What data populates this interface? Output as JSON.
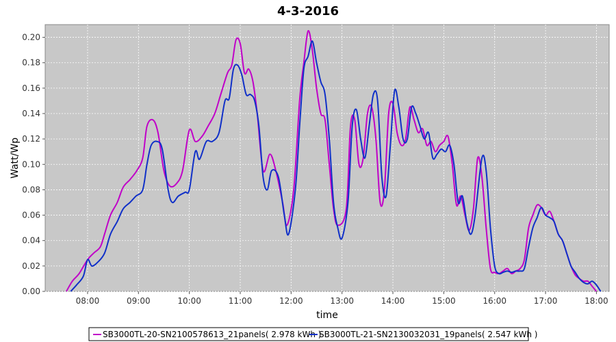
{
  "chart_data": {
    "type": "line",
    "title": "4-3-2016",
    "xlabel": "time",
    "ylabel": "Watt/Wp",
    "xlim": [
      "07:10",
      "18:15"
    ],
    "ylim": [
      0,
      0.21
    ],
    "xticks": [
      "08:00",
      "09:00",
      "10:00",
      "11:00",
      "12:00",
      "13:00",
      "14:00",
      "15:00",
      "16:00",
      "17:00",
      "18:00"
    ],
    "yticks": [
      "0.00",
      "0.02",
      "0.04",
      "0.06",
      "0.08",
      "0.10",
      "0.12",
      "0.14",
      "0.16",
      "0.18",
      "0.20"
    ],
    "grid": true,
    "legend_position": "bottom",
    "plot_background": "#c8c8c8",
    "series": [
      {
        "name": "SB3000TL-20-SN2100578613_21panels( 2.978 kWh )",
        "color": "#c000c8",
        "points": [
          [
            "07:35",
            0.0
          ],
          [
            "07:42",
            0.008
          ],
          [
            "07:50",
            0.014
          ],
          [
            "08:00",
            0.025
          ],
          [
            "08:07",
            0.03
          ],
          [
            "08:15",
            0.035
          ],
          [
            "08:20",
            0.045
          ],
          [
            "08:27",
            0.06
          ],
          [
            "08:35",
            0.07
          ],
          [
            "08:42",
            0.082
          ],
          [
            "08:50",
            0.088
          ],
          [
            "08:58",
            0.095
          ],
          [
            "09:05",
            0.105
          ],
          [
            "09:10",
            0.13
          ],
          [
            "09:17",
            0.135
          ],
          [
            "09:23",
            0.125
          ],
          [
            "09:30",
            0.095
          ],
          [
            "09:37",
            0.083
          ],
          [
            "09:45",
            0.085
          ],
          [
            "09:52",
            0.095
          ],
          [
            "10:00",
            0.127
          ],
          [
            "10:07",
            0.118
          ],
          [
            "10:15",
            0.122
          ],
          [
            "10:22",
            0.13
          ],
          [
            "10:30",
            0.14
          ],
          [
            "10:37",
            0.155
          ],
          [
            "10:45",
            0.172
          ],
          [
            "10:50",
            0.178
          ],
          [
            "10:55",
            0.198
          ],
          [
            "11:00",
            0.195
          ],
          [
            "11:05",
            0.172
          ],
          [
            "11:10",
            0.175
          ],
          [
            "11:15",
            0.165
          ],
          [
            "11:20",
            0.14
          ],
          [
            "11:27",
            0.095
          ],
          [
            "11:35",
            0.108
          ],
          [
            "11:42",
            0.095
          ],
          [
            "11:50",
            0.07
          ],
          [
            "11:55",
            0.052
          ],
          [
            "12:03",
            0.08
          ],
          [
            "12:10",
            0.15
          ],
          [
            "12:15",
            0.18
          ],
          [
            "12:20",
            0.205
          ],
          [
            "12:25",
            0.19
          ],
          [
            "12:30",
            0.16
          ],
          [
            "12:35",
            0.14
          ],
          [
            "12:40",
            0.135
          ],
          [
            "12:45",
            0.1
          ],
          [
            "12:50",
            0.065
          ],
          [
            "12:55",
            0.052
          ],
          [
            "13:05",
            0.065
          ],
          [
            "13:10",
            0.13
          ],
          [
            "13:15",
            0.135
          ],
          [
            "13:20",
            0.1
          ],
          [
            "13:25",
            0.105
          ],
          [
            "13:30",
            0.14
          ],
          [
            "13:35",
            0.145
          ],
          [
            "13:40",
            0.12
          ],
          [
            "13:45",
            0.07
          ],
          [
            "13:50",
            0.08
          ],
          [
            "13:55",
            0.14
          ],
          [
            "14:00",
            0.148
          ],
          [
            "14:05",
            0.125
          ],
          [
            "14:10",
            0.115
          ],
          [
            "14:15",
            0.12
          ],
          [
            "14:20",
            0.145
          ],
          [
            "14:25",
            0.135
          ],
          [
            "14:30",
            0.125
          ],
          [
            "14:35",
            0.128
          ],
          [
            "14:40",
            0.115
          ],
          [
            "14:45",
            0.118
          ],
          [
            "14:50",
            0.11
          ],
          [
            "14:55",
            0.115
          ],
          [
            "15:00",
            0.118
          ],
          [
            "15:05",
            0.122
          ],
          [
            "15:10",
            0.1
          ],
          [
            "15:15",
            0.068
          ],
          [
            "15:20",
            0.075
          ],
          [
            "15:25",
            0.06
          ],
          [
            "15:30",
            0.048
          ],
          [
            "15:35",
            0.065
          ],
          [
            "15:40",
            0.105
          ],
          [
            "15:45",
            0.09
          ],
          [
            "15:50",
            0.05
          ],
          [
            "15:55",
            0.018
          ],
          [
            "16:00",
            0.015
          ],
          [
            "16:05",
            0.014
          ],
          [
            "16:10",
            0.016
          ],
          [
            "16:15",
            0.018
          ],
          [
            "16:20",
            0.014
          ],
          [
            "16:25",
            0.016
          ],
          [
            "16:30",
            0.018
          ],
          [
            "16:35",
            0.025
          ],
          [
            "16:40",
            0.05
          ],
          [
            "16:45",
            0.06
          ],
          [
            "16:50",
            0.068
          ],
          [
            "16:55",
            0.066
          ],
          [
            "17:00",
            0.06
          ],
          [
            "17:05",
            0.063
          ],
          [
            "17:10",
            0.055
          ],
          [
            "17:15",
            0.045
          ],
          [
            "17:20",
            0.04
          ],
          [
            "17:25",
            0.03
          ],
          [
            "17:30",
            0.02
          ],
          [
            "17:35",
            0.013
          ],
          [
            "17:40",
            0.01
          ],
          [
            "17:45",
            0.008
          ],
          [
            "17:50",
            0.008
          ],
          [
            "17:55",
            0.004
          ],
          [
            "18:00",
            0.0
          ]
        ]
      },
      {
        "name": "SB3000TL-21-SN2130032031_19panels( 2.547 kWh )",
        "color": "#1030c8",
        "points": [
          [
            "07:40",
            0.0
          ],
          [
            "07:47",
            0.005
          ],
          [
            "07:55",
            0.012
          ],
          [
            "08:00",
            0.025
          ],
          [
            "08:05",
            0.02
          ],
          [
            "08:12",
            0.023
          ],
          [
            "08:20",
            0.03
          ],
          [
            "08:27",
            0.045
          ],
          [
            "08:35",
            0.055
          ],
          [
            "08:42",
            0.065
          ],
          [
            "08:50",
            0.07
          ],
          [
            "08:57",
            0.075
          ],
          [
            "09:05",
            0.08
          ],
          [
            "09:10",
            0.1
          ],
          [
            "09:15",
            0.115
          ],
          [
            "09:22",
            0.118
          ],
          [
            "09:28",
            0.112
          ],
          [
            "09:35",
            0.08
          ],
          [
            "09:40",
            0.07
          ],
          [
            "09:47",
            0.075
          ],
          [
            "09:55",
            0.078
          ],
          [
            "10:00",
            0.08
          ],
          [
            "10:07",
            0.11
          ],
          [
            "10:12",
            0.104
          ],
          [
            "10:20",
            0.118
          ],
          [
            "10:27",
            0.118
          ],
          [
            "10:35",
            0.125
          ],
          [
            "10:42",
            0.15
          ],
          [
            "10:47",
            0.152
          ],
          [
            "10:52",
            0.175
          ],
          [
            "10:57",
            0.178
          ],
          [
            "11:02",
            0.17
          ],
          [
            "11:07",
            0.155
          ],
          [
            "11:12",
            0.155
          ],
          [
            "11:17",
            0.15
          ],
          [
            "11:22",
            0.13
          ],
          [
            "11:27",
            0.09
          ],
          [
            "11:32",
            0.08
          ],
          [
            "11:37",
            0.095
          ],
          [
            "11:45",
            0.09
          ],
          [
            "11:52",
            0.06
          ],
          [
            "11:57",
            0.045
          ],
          [
            "12:05",
            0.08
          ],
          [
            "12:10",
            0.13
          ],
          [
            "12:15",
            0.175
          ],
          [
            "12:20",
            0.185
          ],
          [
            "12:25",
            0.197
          ],
          [
            "12:30",
            0.18
          ],
          [
            "12:35",
            0.165
          ],
          [
            "12:40",
            0.155
          ],
          [
            "12:45",
            0.12
          ],
          [
            "12:50",
            0.07
          ],
          [
            "12:55",
            0.05
          ],
          [
            "13:00",
            0.042
          ],
          [
            "13:07",
            0.07
          ],
          [
            "13:12",
            0.13
          ],
          [
            "13:17",
            0.143
          ],
          [
            "13:22",
            0.12
          ],
          [
            "13:27",
            0.105
          ],
          [
            "13:32",
            0.13
          ],
          [
            "13:37",
            0.155
          ],
          [
            "13:42",
            0.15
          ],
          [
            "13:47",
            0.09
          ],
          [
            "13:52",
            0.075
          ],
          [
            "13:57",
            0.115
          ],
          [
            "14:02",
            0.158
          ],
          [
            "14:07",
            0.145
          ],
          [
            "14:12",
            0.12
          ],
          [
            "14:17",
            0.12
          ],
          [
            "14:22",
            0.145
          ],
          [
            "14:27",
            0.14
          ],
          [
            "14:32",
            0.13
          ],
          [
            "14:37",
            0.12
          ],
          [
            "14:42",
            0.125
          ],
          [
            "14:47",
            0.105
          ],
          [
            "14:52",
            0.108
          ],
          [
            "14:57",
            0.112
          ],
          [
            "15:02",
            0.11
          ],
          [
            "15:07",
            0.115
          ],
          [
            "15:12",
            0.1
          ],
          [
            "15:17",
            0.07
          ],
          [
            "15:22",
            0.075
          ],
          [
            "15:27",
            0.055
          ],
          [
            "15:32",
            0.045
          ],
          [
            "15:37",
            0.06
          ],
          [
            "15:45",
            0.105
          ],
          [
            "15:50",
            0.095
          ],
          [
            "15:55",
            0.05
          ],
          [
            "16:00",
            0.02
          ],
          [
            "16:05",
            0.014
          ],
          [
            "16:10",
            0.015
          ],
          [
            "16:15",
            0.016
          ],
          [
            "16:20",
            0.015
          ],
          [
            "16:25",
            0.016
          ],
          [
            "16:30",
            0.016
          ],
          [
            "16:35",
            0.018
          ],
          [
            "16:40",
            0.035
          ],
          [
            "16:45",
            0.05
          ],
          [
            "16:50",
            0.058
          ],
          [
            "16:55",
            0.066
          ],
          [
            "17:00",
            0.06
          ],
          [
            "17:05",
            0.058
          ],
          [
            "17:10",
            0.055
          ],
          [
            "17:15",
            0.045
          ],
          [
            "17:20",
            0.04
          ],
          [
            "17:25",
            0.03
          ],
          [
            "17:30",
            0.02
          ],
          [
            "17:35",
            0.015
          ],
          [
            "17:40",
            0.01
          ],
          [
            "17:45",
            0.007
          ],
          [
            "17:50",
            0.006
          ],
          [
            "17:55",
            0.008
          ],
          [
            "18:00",
            0.005
          ],
          [
            "18:05",
            0.0
          ]
        ]
      }
    ]
  }
}
